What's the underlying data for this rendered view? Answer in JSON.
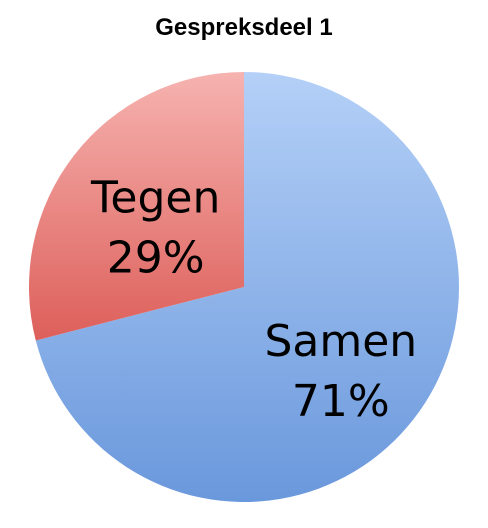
{
  "chart_data": {
    "type": "pie",
    "title": "Gespreksdeel 1",
    "slices": [
      {
        "label": "Samen",
        "value": 71,
        "value_label": "71%",
        "color": "#8fb4ec"
      },
      {
        "label": "Tegen",
        "value": 29,
        "value_label": "29%",
        "color": "#ec8a87"
      }
    ],
    "legend": "none"
  }
}
